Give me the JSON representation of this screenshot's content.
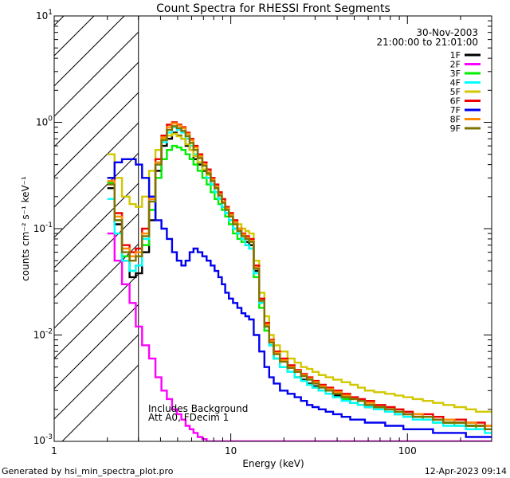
{
  "chart_data": {
    "type": "line",
    "title": "Count Spectra for RHESSI Front Segments",
    "xlabel": "Energy (keV)",
    "ylabel": "counts cm⁻² s⁻¹ keV⁻¹",
    "x_scale": "log",
    "y_scale": "log",
    "xlim": [
      1,
      300
    ],
    "ylim": [
      0.001,
      10
    ],
    "x_ticks": [
      {
        "value": 1,
        "label": "1"
      },
      {
        "value": 10,
        "label": "10"
      },
      {
        "value": 100,
        "label": "100"
      }
    ],
    "y_ticks": [
      {
        "value": 0.001,
        "base": "10",
        "exp": "-3"
      },
      {
        "value": 0.01,
        "base": "10",
        "exp": "-2"
      },
      {
        "value": 0.1,
        "base": "10",
        "exp": "-1"
      },
      {
        "value": 1,
        "base": "10",
        "exp": "0"
      },
      {
        "value": 10,
        "base": "10",
        "exp": "1"
      }
    ],
    "date": "30-Nov-2003",
    "time_range": "21:00:00 to 21:01:00",
    "annotations": [
      "Includes Background",
      "Att A0, FDecim 1"
    ],
    "excluded_range_keV": [
      1,
      3
    ],
    "x": [
      2.1,
      2.3,
      2.55,
      2.8,
      3.0,
      3.3,
      3.6,
      3.9,
      4.2,
      4.5,
      4.8,
      5.1,
      5.4,
      5.7,
      6.0,
      6.3,
      6.7,
      7.1,
      7.5,
      7.9,
      8.3,
      8.7,
      9.1,
      9.5,
      10.0,
      10.6,
      11.2,
      11.8,
      12.4,
      13.0,
      14,
      15,
      16,
      17,
      18,
      20,
      22,
      24,
      26,
      28,
      30,
      33,
      36,
      40,
      45,
      50,
      55,
      60,
      70,
      80,
      90,
      100,
      115,
      130,
      150,
      170,
      200,
      230,
      260,
      290
    ],
    "series": [
      {
        "name": "1F",
        "color": "#000000",
        "values": [
          0.24,
          0.11,
          0.05,
          0.035,
          0.038,
          0.06,
          0.12,
          0.35,
          0.6,
          0.7,
          0.8,
          0.75,
          0.7,
          0.6,
          0.55,
          0.45,
          0.4,
          0.35,
          0.3,
          0.26,
          0.22,
          0.19,
          0.16,
          0.14,
          0.12,
          0.1,
          0.09,
          0.08,
          0.075,
          0.07,
          0.04,
          0.02,
          0.012,
          0.008,
          0.006,
          0.005,
          0.0045,
          0.004,
          0.0038,
          0.0035,
          0.0033,
          0.003,
          0.0028,
          0.0027,
          0.0025,
          0.0023,
          0.0022,
          0.0021,
          0.002,
          0.0019,
          0.0018,
          0.0018,
          0.0017,
          0.0016,
          0.0016,
          0.0015,
          0.0015,
          0.0014,
          0.0014,
          0.0013
        ]
      },
      {
        "name": "2F",
        "color": "#ff00ff",
        "values": [
          0.09,
          0.05,
          0.03,
          0.02,
          0.012,
          0.008,
          0.006,
          0.004,
          0.003,
          0.0025,
          0.002,
          0.0018,
          0.0016,
          0.0014,
          0.0013,
          0.0012,
          0.0011,
          0.00105,
          0.001,
          0.001,
          0.001,
          0.001,
          0.001,
          0.001,
          0.001,
          0.001,
          0.001,
          0.001,
          0.001,
          0.001,
          0.001,
          0.001,
          0.001,
          0.001,
          0.001,
          0.001,
          0.001,
          0.001,
          0.001,
          0.001,
          0.001,
          0.001,
          0.001,
          0.001,
          0.001,
          0.001,
          0.001,
          0.001,
          0.001,
          0.001,
          0.001,
          0.001,
          0.001,
          0.001,
          0.001,
          0.001,
          0.001,
          0.001,
          0.001,
          0.001
        ]
      },
      {
        "name": "3F",
        "color": "#00ee00",
        "values": [
          0.27,
          0.12,
          0.055,
          0.04,
          0.045,
          0.07,
          0.15,
          0.3,
          0.45,
          0.55,
          0.6,
          0.58,
          0.55,
          0.5,
          0.45,
          0.4,
          0.35,
          0.3,
          0.26,
          0.22,
          0.19,
          0.17,
          0.15,
          0.13,
          0.11,
          0.09,
          0.08,
          0.075,
          0.07,
          0.065,
          0.035,
          0.018,
          0.011,
          0.008,
          0.006,
          0.005,
          0.0045,
          0.004,
          0.0037,
          0.0034,
          0.0032,
          0.003,
          0.0028,
          0.0026,
          0.0025,
          0.0023,
          0.0022,
          0.0021,
          0.002,
          0.0019,
          0.0018,
          0.0017,
          0.0017,
          0.0016,
          0.0015,
          0.0015,
          0.0014,
          0.0014,
          0.0013,
          0.0013
        ]
      },
      {
        "name": "4F",
        "color": "#00ffff",
        "values": [
          0.19,
          0.09,
          0.05,
          0.04,
          0.045,
          0.08,
          0.18,
          0.4,
          0.65,
          0.8,
          0.9,
          0.85,
          0.8,
          0.7,
          0.6,
          0.5,
          0.42,
          0.36,
          0.3,
          0.26,
          0.22,
          0.19,
          0.16,
          0.14,
          0.12,
          0.1,
          0.09,
          0.08,
          0.07,
          0.065,
          0.038,
          0.02,
          0.012,
          0.008,
          0.006,
          0.005,
          0.0045,
          0.004,
          0.0037,
          0.0034,
          0.0032,
          0.003,
          0.0028,
          0.0026,
          0.0024,
          0.0023,
          0.0022,
          0.0021,
          0.002,
          0.0019,
          0.0018,
          0.0017,
          0.0016,
          0.0016,
          0.0015,
          0.0014,
          0.0014,
          0.0013,
          0.0013,
          0.0012
        ]
      },
      {
        "name": "5F",
        "color": "#d2c800",
        "values": [
          0.5,
          0.3,
          0.2,
          0.17,
          0.16,
          0.2,
          0.35,
          0.55,
          0.7,
          0.75,
          0.78,
          0.74,
          0.7,
          0.62,
          0.55,
          0.48,
          0.42,
          0.36,
          0.32,
          0.28,
          0.24,
          0.21,
          0.18,
          0.16,
          0.14,
          0.12,
          0.11,
          0.1,
          0.095,
          0.09,
          0.05,
          0.025,
          0.015,
          0.01,
          0.008,
          0.007,
          0.006,
          0.0055,
          0.005,
          0.0048,
          0.0045,
          0.0042,
          0.004,
          0.0038,
          0.0036,
          0.0034,
          0.0032,
          0.003,
          0.0029,
          0.0028,
          0.0027,
          0.0026,
          0.0025,
          0.0024,
          0.0023,
          0.0022,
          0.0021,
          0.002,
          0.0019,
          0.0019
        ]
      },
      {
        "name": "6F",
        "color": "#ee0000",
        "values": [
          0.3,
          0.14,
          0.07,
          0.06,
          0.065,
          0.1,
          0.2,
          0.45,
          0.75,
          0.95,
          1.0,
          0.95,
          0.9,
          0.8,
          0.7,
          0.6,
          0.5,
          0.42,
          0.36,
          0.3,
          0.26,
          0.22,
          0.19,
          0.16,
          0.14,
          0.12,
          0.1,
          0.09,
          0.085,
          0.08,
          0.045,
          0.022,
          0.013,
          0.009,
          0.007,
          0.006,
          0.0052,
          0.0047,
          0.0043,
          0.004,
          0.0037,
          0.0034,
          0.0032,
          0.003,
          0.0028,
          0.0026,
          0.0025,
          0.0024,
          0.0022,
          0.0021,
          0.002,
          0.0019,
          0.0018,
          0.0018,
          0.0017,
          0.0016,
          0.0016,
          0.0015,
          0.0015,
          0.0014
        ]
      },
      {
        "name": "7F",
        "color": "#0000ee",
        "values": [
          0.3,
          0.42,
          0.45,
          0.45,
          0.4,
          0.3,
          0.2,
          0.12,
          0.1,
          0.08,
          0.06,
          0.05,
          0.045,
          0.05,
          0.06,
          0.065,
          0.06,
          0.055,
          0.05,
          0.045,
          0.04,
          0.035,
          0.03,
          0.025,
          0.022,
          0.02,
          0.018,
          0.016,
          0.015,
          0.014,
          0.01,
          0.007,
          0.005,
          0.004,
          0.0035,
          0.003,
          0.0028,
          0.0026,
          0.0024,
          0.0022,
          0.0021,
          0.002,
          0.0019,
          0.0018,
          0.0017,
          0.0016,
          0.0016,
          0.0015,
          0.0015,
          0.0014,
          0.0014,
          0.0013,
          0.0013,
          0.0013,
          0.0012,
          0.0012,
          0.0012,
          0.0011,
          0.0011,
          0.0011
        ]
      },
      {
        "name": "8F",
        "color": "#ff8c00",
        "values": [
          0.28,
          0.13,
          0.065,
          0.055,
          0.06,
          0.09,
          0.19,
          0.42,
          0.72,
          0.9,
          0.98,
          0.93,
          0.88,
          0.78,
          0.68,
          0.58,
          0.48,
          0.4,
          0.34,
          0.29,
          0.25,
          0.21,
          0.18,
          0.155,
          0.135,
          0.115,
          0.1,
          0.088,
          0.082,
          0.077,
          0.043,
          0.021,
          0.0125,
          0.0088,
          0.0068,
          0.0058,
          0.005,
          0.0046,
          0.0042,
          0.0039,
          0.0036,
          0.0033,
          0.0031,
          0.0029,
          0.0027,
          0.0025,
          0.0024,
          0.0023,
          0.0021,
          0.002,
          0.0019,
          0.0018,
          0.0018,
          0.0017,
          0.0016,
          0.0016,
          0.0015,
          0.0015,
          0.0014,
          0.0014
        ]
      },
      {
        "name": "9F",
        "color": "#7f7300",
        "values": [
          0.26,
          0.12,
          0.06,
          0.05,
          0.055,
          0.085,
          0.18,
          0.4,
          0.68,
          0.85,
          0.92,
          0.88,
          0.83,
          0.74,
          0.64,
          0.55,
          0.46,
          0.39,
          0.33,
          0.28,
          0.24,
          0.205,
          0.175,
          0.15,
          0.13,
          0.11,
          0.095,
          0.085,
          0.08,
          0.075,
          0.042,
          0.021,
          0.012,
          0.0085,
          0.0066,
          0.0056,
          0.0049,
          0.0045,
          0.0041,
          0.0038,
          0.0035,
          0.0032,
          0.003,
          0.0028,
          0.0026,
          0.0025,
          0.0024,
          0.0022,
          0.0021,
          0.002,
          0.0019,
          0.0018,
          0.0017,
          0.0017,
          0.0016,
          0.0015,
          0.0015,
          0.0014,
          0.0014,
          0.0013
        ]
      }
    ]
  },
  "footer": {
    "generated_by": "Generated by hsi_min_spectra_plot.pro",
    "timestamp": "12-Apr-2023 09:14"
  }
}
